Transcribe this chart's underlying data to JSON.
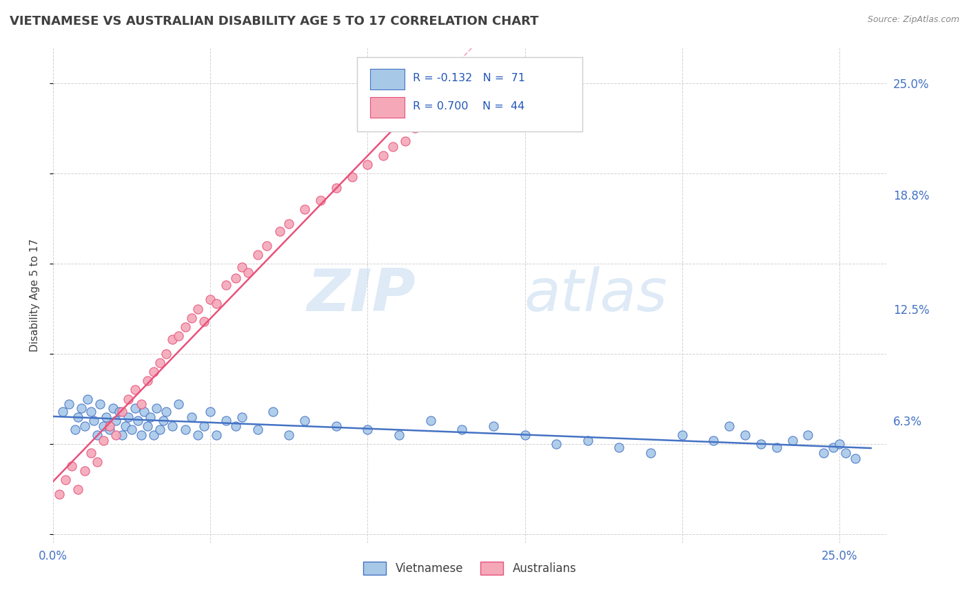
{
  "title": "VIETNAMESE VS AUSTRALIAN DISABILITY AGE 5 TO 17 CORRELATION CHART",
  "source": "Source: ZipAtlas.com",
  "ylabel": "Disability Age 5 to 17",
  "xlim": [
    0.0,
    0.265
  ],
  "ylim": [
    -0.005,
    0.27
  ],
  "xticks": [
    0.0,
    0.05,
    0.1,
    0.15,
    0.2,
    0.25
  ],
  "xticklabels": [
    "0.0%",
    "",
    "",
    "",
    "",
    "25.0%"
  ],
  "ytick_labels_right": [
    "6.3%",
    "12.5%",
    "18.8%",
    "25.0%"
  ],
  "ytick_positions_right": [
    0.063,
    0.125,
    0.188,
    0.25
  ],
  "color_vietnamese": "#A8C8E8",
  "color_australians": "#F4A8B8",
  "color_trend_vietnamese": "#4472C4",
  "color_trend_australians": "#E8507A",
  "watermark_zip": "ZIP",
  "watermark_atlas": "atlas",
  "background_color": "#FFFFFF",
  "grid_color": "#CCCCCC",
  "title_color": "#404040",
  "tick_color": "#4472C4",
  "vietnamese_x": [
    0.003,
    0.005,
    0.007,
    0.008,
    0.009,
    0.01,
    0.011,
    0.012,
    0.013,
    0.014,
    0.015,
    0.016,
    0.017,
    0.018,
    0.019,
    0.02,
    0.021,
    0.022,
    0.023,
    0.024,
    0.025,
    0.026,
    0.027,
    0.028,
    0.029,
    0.03,
    0.031,
    0.032,
    0.033,
    0.034,
    0.035,
    0.036,
    0.038,
    0.04,
    0.042,
    0.044,
    0.046,
    0.048,
    0.05,
    0.052,
    0.055,
    0.058,
    0.06,
    0.065,
    0.07,
    0.075,
    0.08,
    0.09,
    0.1,
    0.11,
    0.12,
    0.13,
    0.14,
    0.15,
    0.16,
    0.17,
    0.18,
    0.19,
    0.2,
    0.21,
    0.215,
    0.22,
    0.225,
    0.23,
    0.235,
    0.24,
    0.245,
    0.248,
    0.25,
    0.252,
    0.255
  ],
  "vietnamese_y": [
    0.068,
    0.072,
    0.058,
    0.065,
    0.07,
    0.06,
    0.075,
    0.068,
    0.063,
    0.055,
    0.072,
    0.06,
    0.065,
    0.058,
    0.07,
    0.063,
    0.068,
    0.055,
    0.06,
    0.065,
    0.058,
    0.07,
    0.063,
    0.055,
    0.068,
    0.06,
    0.065,
    0.055,
    0.07,
    0.058,
    0.063,
    0.068,
    0.06,
    0.072,
    0.058,
    0.065,
    0.055,
    0.06,
    0.068,
    0.055,
    0.063,
    0.06,
    0.065,
    0.058,
    0.068,
    0.055,
    0.063,
    0.06,
    0.058,
    0.055,
    0.063,
    0.058,
    0.06,
    0.055,
    0.05,
    0.052,
    0.048,
    0.045,
    0.055,
    0.052,
    0.06,
    0.055,
    0.05,
    0.048,
    0.052,
    0.055,
    0.045,
    0.048,
    0.05,
    0.045,
    0.042
  ],
  "australians_x": [
    0.002,
    0.004,
    0.006,
    0.008,
    0.01,
    0.012,
    0.014,
    0.016,
    0.018,
    0.02,
    0.022,
    0.024,
    0.026,
    0.028,
    0.03,
    0.032,
    0.034,
    0.036,
    0.038,
    0.04,
    0.042,
    0.044,
    0.046,
    0.048,
    0.05,
    0.052,
    0.055,
    0.058,
    0.06,
    0.062,
    0.065,
    0.068,
    0.072,
    0.075,
    0.08,
    0.085,
    0.09,
    0.095,
    0.1,
    0.105,
    0.108,
    0.112,
    0.115,
    0.12
  ],
  "australians_y": [
    0.022,
    0.03,
    0.038,
    0.025,
    0.035,
    0.045,
    0.04,
    0.052,
    0.06,
    0.055,
    0.068,
    0.075,
    0.08,
    0.072,
    0.085,
    0.09,
    0.095,
    0.1,
    0.108,
    0.11,
    0.115,
    0.12,
    0.125,
    0.118,
    0.13,
    0.128,
    0.138,
    0.142,
    0.148,
    0.145,
    0.155,
    0.16,
    0.168,
    0.172,
    0.18,
    0.185,
    0.192,
    0.198,
    0.205,
    0.21,
    0.215,
    0.218,
    0.225,
    0.23
  ]
}
